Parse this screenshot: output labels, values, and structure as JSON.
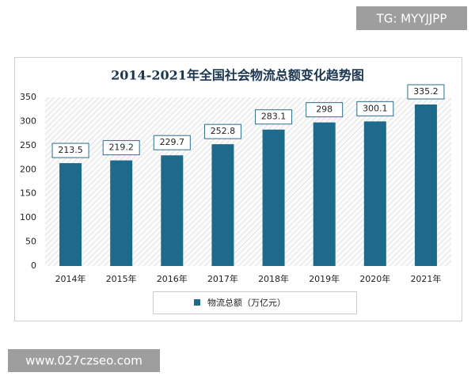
{
  "watermarks": [
    "TG: MYYJJPP",
    "www.027czseo.com"
  ],
  "chart_data": {
    "type": "bar",
    "title": "2014-2021年全国社会物流总额变化趋势图",
    "categories": [
      "2014年",
      "2015年",
      "2016年",
      "2017年",
      "2018年",
      "2019年",
      "2020年",
      "2021年"
    ],
    "series": [
      {
        "name": "物流总额（万亿元）",
        "color": "#1d6a8c",
        "values": [
          213.5,
          219.2,
          229.7,
          252.8,
          283.1,
          298,
          300.1,
          335.2
        ]
      }
    ],
    "ylim": [
      0,
      350
    ],
    "yticks": [
      0,
      50,
      100,
      150,
      200,
      250,
      300,
      350
    ],
    "grid": false,
    "legend": "bottom"
  }
}
